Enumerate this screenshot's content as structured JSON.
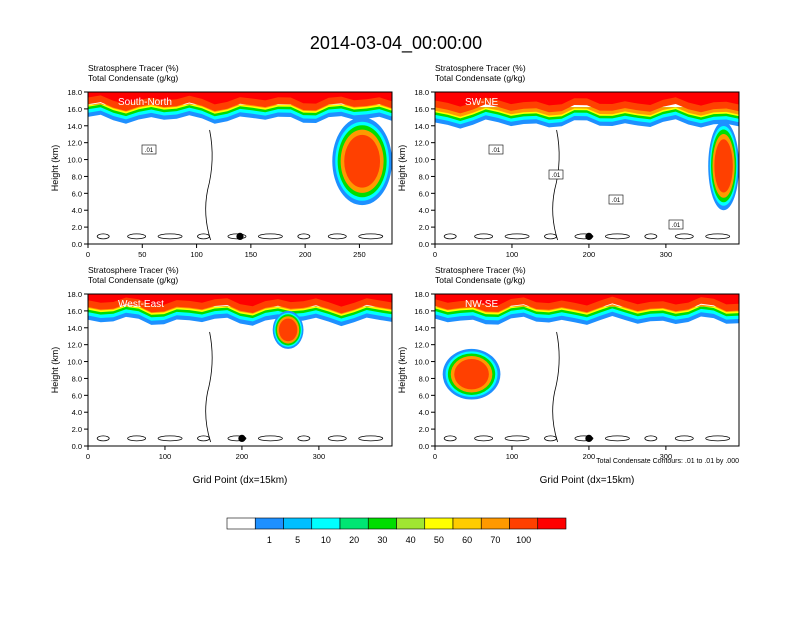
{
  "title": "2014-03-04_00:00:00",
  "chart_data": [
    {
      "type": "heatmap",
      "annotation": "South-North",
      "subtitle_lines": [
        "Stratosphere Tracer   (%)",
        "Total Condensate   (g/kg)"
      ],
      "ylabel": "Height (km)",
      "xlabel": "",
      "xlim": [
        0,
        280
      ],
      "ylim": [
        0,
        18
      ],
      "x_ticks": [
        0,
        50,
        100,
        150,
        200,
        250
      ],
      "y_ticks": [
        "0.0",
        "2.0",
        "4.0",
        "6.0",
        "8.0",
        "10.0",
        "12.0",
        "14.0",
        "16.0",
        "18.0"
      ],
      "marker_x": 140,
      "contour_labels": [
        ".01"
      ],
      "tracer_layer": {
        "top": 18,
        "strong_base": 16.5,
        "fringe_base": 14.8
      },
      "intrusions": [
        {
          "x_range": [
            225,
            280
          ],
          "top": 15,
          "base": 4.6
        }
      ]
    },
    {
      "type": "heatmap",
      "annotation": "SW-NE",
      "subtitle_lines": [
        "Stratosphere Tracer   (%)",
        "Total Condensate   (g/kg)"
      ],
      "ylabel": "Height (km)",
      "xlabel": "",
      "xlim": [
        0,
        395
      ],
      "ylim": [
        0,
        18
      ],
      "x_ticks": [
        0,
        100,
        200,
        300
      ],
      "y_ticks": [
        "0.0",
        "2.0",
        "4.0",
        "6.0",
        "8.0",
        "10.0",
        "12.0",
        "14.0",
        "16.0",
        "18.0"
      ],
      "marker_x": 200,
      "contour_labels": [
        ".01",
        ".01",
        ".01",
        ".01"
      ],
      "tracer_layer": {
        "top": 18,
        "strong_base": 16.2,
        "fringe_base": 14.2
      },
      "intrusions": [
        {
          "x_range": [
            355,
            395
          ],
          "top": 14.5,
          "base": 4.0
        }
      ]
    },
    {
      "type": "heatmap",
      "annotation": "West-East",
      "subtitle_lines": [
        "Stratosphere Tracer   (%)",
        "Total Condensate   (g/kg)"
      ],
      "ylabel": "Height (km)",
      "xlabel": "Grid Point (dx=15km)",
      "xlim": [
        0,
        395
      ],
      "ylim": [
        0,
        18
      ],
      "x_ticks": [
        0,
        100,
        200,
        300
      ],
      "y_ticks": [
        "0.0",
        "2.0",
        "4.0",
        "6.0",
        "8.0",
        "10.0",
        "12.0",
        "14.0",
        "16.0",
        "18.0"
      ],
      "marker_x": 200,
      "contour_labels": [],
      "tracer_layer": {
        "top": 18,
        "strong_base": 16.5,
        "fringe_base": 14.8
      },
      "intrusions": [
        {
          "x_range": [
            240,
            280
          ],
          "top": 16,
          "base": 11.5
        }
      ]
    },
    {
      "type": "heatmap",
      "annotation": "NW-SE",
      "subtitle_lines": [
        "Stratosphere Tracer   (%)",
        "Total Condensate   (g/kg)"
      ],
      "ylabel": "Height (km)",
      "xlabel": "Grid Point (dx=15km)",
      "xlim": [
        0,
        395
      ],
      "ylim": [
        0,
        18
      ],
      "x_ticks": [
        0,
        100,
        200,
        300
      ],
      "y_ticks": [
        "0.0",
        "2.0",
        "4.0",
        "6.0",
        "8.0",
        "10.0",
        "12.0",
        "14.0",
        "16.0",
        "18.0"
      ],
      "marker_x": 200,
      "contour_labels": [],
      "footnote": "Total Condensate Contours: .01 to .01 by .000",
      "tracer_layer": {
        "top": 18,
        "strong_base": 16.5,
        "fringe_base": 14.8
      },
      "intrusions": [
        {
          "x_range": [
            10,
            85
          ],
          "top": 11.5,
          "base": 5.5
        }
      ]
    }
  ],
  "colorbar": {
    "colors": [
      "#ffffff",
      "#1e90ff",
      "#00bfff",
      "#00ffff",
      "#00e673",
      "#00dd00",
      "#a0e632",
      "#ffff00",
      "#ffcc00",
      "#ff9900",
      "#ff4000",
      "#ff0000"
    ],
    "labels": [
      "1",
      "5",
      "10",
      "20",
      "30",
      "40",
      "50",
      "60",
      "70",
      "100"
    ]
  },
  "palette": {
    "light_blue": "#1e90ff",
    "cyan": "#00ffff",
    "green": "#00dd00",
    "yellow": "#ffff00",
    "orange": "#ff9900",
    "red_orange": "#ff4000",
    "red": "#ff0000",
    "contour": "#000000"
  }
}
